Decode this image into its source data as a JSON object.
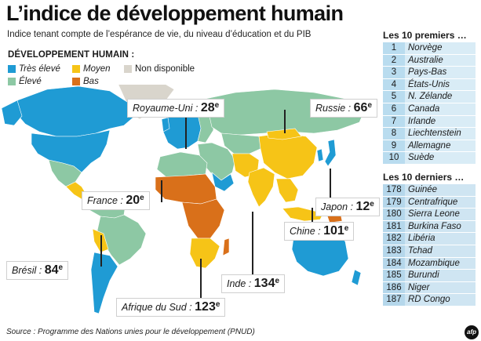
{
  "title": "L’indice de développement humain",
  "subtitle": "Indice tenant compte de l’espérance de vie, du niveau d’éducation et du PIB",
  "legend": {
    "title": "DÉVELOPPEMENT HUMAIN :",
    "items": [
      {
        "label": "Très élevé",
        "color": "#1f9bd4"
      },
      {
        "label": "Moyen",
        "color": "#f6c417"
      },
      {
        "label": "Non disponible",
        "color": "#d9d5cc"
      },
      {
        "label": "Élevé",
        "color": "#8dc8a4"
      },
      {
        "label": "Bas",
        "color": "#d9701a"
      }
    ]
  },
  "callouts": [
    {
      "name": "Royaume-Uni :",
      "rank": "28",
      "suffix": "e"
    },
    {
      "name": "Russie :",
      "rank": "66",
      "suffix": "e"
    },
    {
      "name": "France :",
      "rank": "20",
      "suffix": "e"
    },
    {
      "name": "Japon :",
      "rank": "12",
      "suffix": "e"
    },
    {
      "name": "Chine :",
      "rank": "101",
      "suffix": "e"
    },
    {
      "name": "Brésil :",
      "rank": "84",
      "suffix": "e"
    },
    {
      "name": "Inde :",
      "rank": "134",
      "suffix": "e"
    },
    {
      "name": "Afrique du Sud :",
      "rank": "123",
      "suffix": "e"
    }
  ],
  "top10": {
    "heading": "Les 10 premiers …",
    "rows": [
      {
        "rank": "1",
        "country": "Norvège"
      },
      {
        "rank": "2",
        "country": "Australie"
      },
      {
        "rank": "3",
        "country": "Pays-Bas"
      },
      {
        "rank": "4",
        "country": "États-Unis"
      },
      {
        "rank": "5",
        "country": "N. Zélande"
      },
      {
        "rank": "6",
        "country": "Canada"
      },
      {
        "rank": "7",
        "country": "Irlande"
      },
      {
        "rank": "8",
        "country": "Liechtenstein"
      },
      {
        "rank": "9",
        "country": "Allemagne"
      },
      {
        "rank": "10",
        "country": "Suède"
      }
    ]
  },
  "bottom10": {
    "heading": "Les 10 derniers …",
    "rows": [
      {
        "rank": "178",
        "country": "Guinée"
      },
      {
        "rank": "179",
        "country": "Centrafrique"
      },
      {
        "rank": "180",
        "country": "Sierra Leone"
      },
      {
        "rank": "181",
        "country": "Burkina Faso"
      },
      {
        "rank": "182",
        "country": "Libéria"
      },
      {
        "rank": "183",
        "country": "Tchad"
      },
      {
        "rank": "184",
        "country": "Mozambique"
      },
      {
        "rank": "185",
        "country": "Burundi"
      },
      {
        "rank": "186",
        "country": "Niger"
      },
      {
        "rank": "187",
        "country": "RD Congo"
      }
    ]
  },
  "source": "Source : Programme des Nations unies pour le développement (PNUD)",
  "logo": "afp"
}
